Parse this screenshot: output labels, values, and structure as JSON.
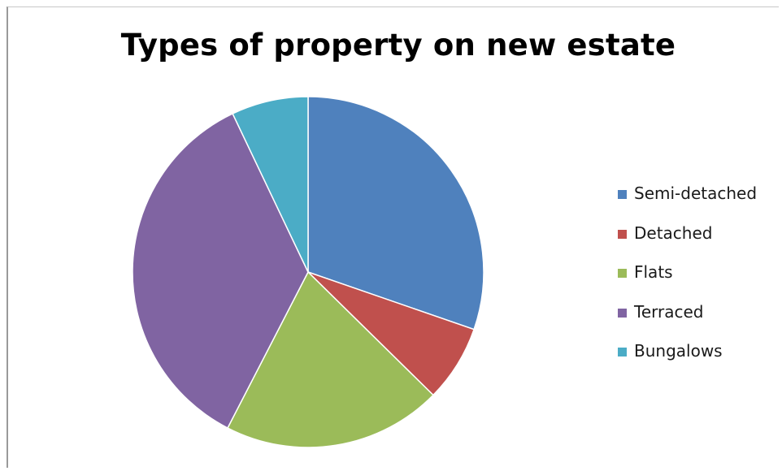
{
  "chart_data": {
    "type": "pie",
    "title": "Types of property on new estate",
    "categories": [
      "Semi-detached",
      "Detached",
      "Flats",
      "Terraced",
      "Bungalows"
    ],
    "values": [
      30,
      7,
      20,
      35,
      7
    ],
    "colors": [
      "#4F81BD",
      "#C0504D",
      "#9BBB59",
      "#8064A2",
      "#4BACC6"
    ],
    "legend": "right"
  }
}
